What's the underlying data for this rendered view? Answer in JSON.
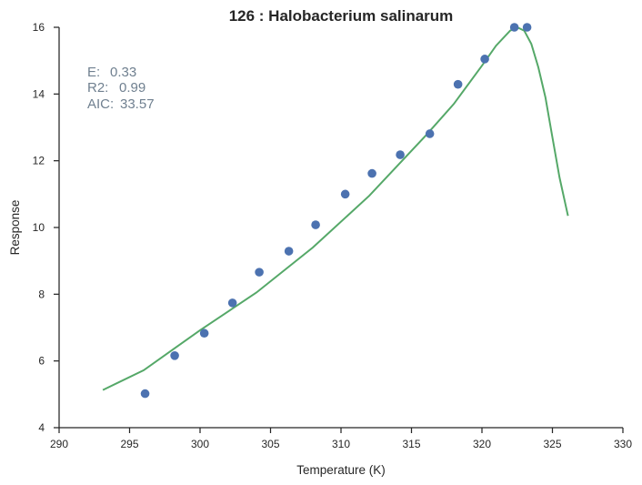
{
  "chart_data": {
    "type": "scatter",
    "title": "126 : Halobacterium salinarum",
    "xlabel": "Temperature (K)",
    "ylabel": "Response",
    "xlim": [
      290,
      330
    ],
    "ylim": [
      4,
      16
    ],
    "xticks": [
      290,
      295,
      300,
      305,
      310,
      315,
      320,
      325,
      330
    ],
    "yticks": [
      4,
      6,
      8,
      10,
      12,
      14,
      16
    ],
    "grid": false,
    "colors": {
      "points": "#4c72b0",
      "fit": "#55a868",
      "stats": "#708090",
      "axes": "#262626"
    },
    "annotations": [
      {
        "label": "E:",
        "value": "0.33"
      },
      {
        "label": "R2:",
        "value": "0.99"
      },
      {
        "label": "AIC:",
        "value": "33.57"
      }
    ],
    "series": [
      {
        "kind": "points",
        "x": [
          296.1,
          298.2,
          300.3,
          302.3,
          304.2,
          306.3,
          308.2,
          310.3,
          312.2,
          314.2,
          316.3,
          318.3,
          320.2,
          322.3,
          323.2
        ],
        "y": [
          5.02,
          6.16,
          6.83,
          7.74,
          8.66,
          9.29,
          10.08,
          11.0,
          11.62,
          12.18,
          12.81,
          14.29,
          15.05,
          16.0,
          16.0
        ]
      },
      {
        "kind": "line",
        "x": [
          293.1,
          296,
          300,
          304,
          308,
          312,
          316,
          318,
          320,
          321,
          322,
          322.5,
          323,
          323.5,
          324,
          324.5,
          325,
          325.5,
          326.1
        ],
        "y": [
          5.13,
          5.72,
          6.92,
          8.05,
          9.4,
          10.95,
          12.75,
          13.7,
          14.85,
          15.45,
          15.9,
          16.0,
          15.9,
          15.5,
          14.8,
          13.9,
          12.7,
          11.5,
          10.35
        ]
      }
    ]
  }
}
